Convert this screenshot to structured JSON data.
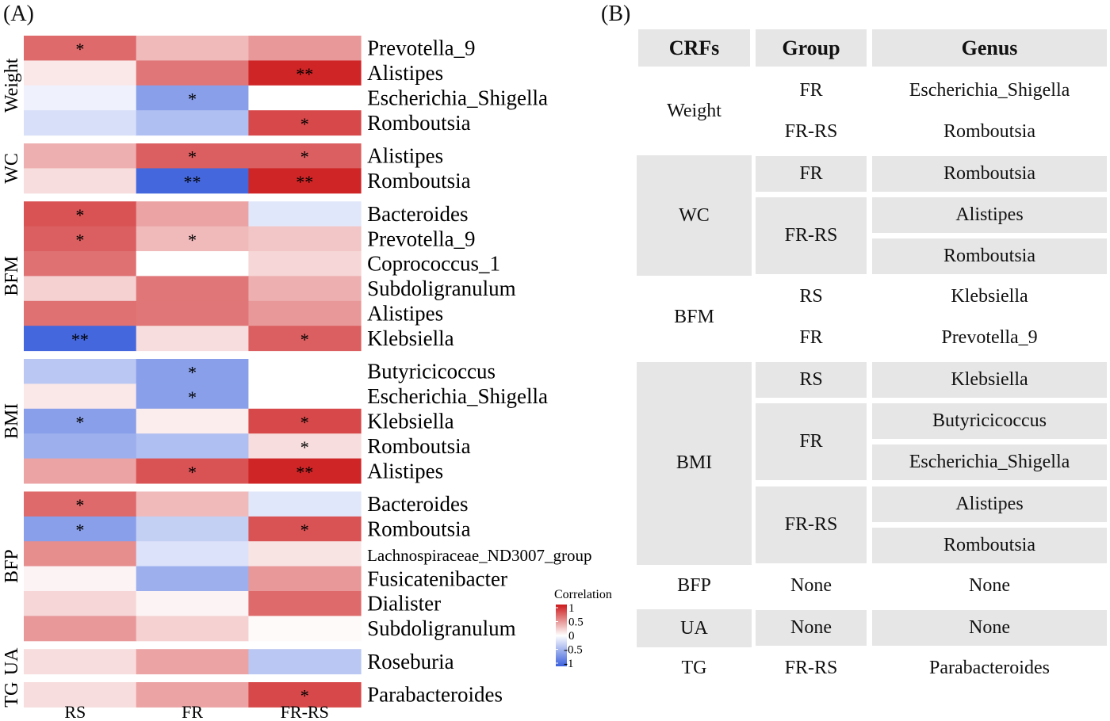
{
  "panel_a_label": "(A)",
  "panel_b_label": "(B)",
  "chart_data": {
    "type": "heatmap",
    "title": "",
    "columns": [
      "RS",
      "FR",
      "FR-RS"
    ],
    "legend": {
      "title": "Correlation",
      "ticks": [
        "1",
        "0.5",
        "0",
        "-0.5",
        "-1"
      ],
      "range": [
        -1,
        1
      ],
      "colors": {
        "low": "#3a5fdb",
        "mid": "#ffffff",
        "high": "#cc1a1c"
      }
    },
    "groups": [
      {
        "name": "Weight",
        "rows": [
          {
            "genus": "Prevotella_9",
            "values": [
              0.65,
              0.3,
              0.45
            ],
            "sig": [
              "*",
              "",
              ""
            ]
          },
          {
            "genus": "Alistipes",
            "values": [
              0.1,
              0.6,
              0.95
            ],
            "sig": [
              "",
              "",
              "**"
            ]
          },
          {
            "genus": "Escherichia_Shigella",
            "values": [
              -0.08,
              -0.6,
              0.0
            ],
            "sig": [
              "",
              "*",
              ""
            ]
          },
          {
            "genus": "Romboutsia",
            "values": [
              -0.2,
              -0.4,
              0.8
            ],
            "sig": [
              "",
              "",
              "*"
            ]
          }
        ]
      },
      {
        "name": "WC",
        "rows": [
          {
            "genus": "Alistipes",
            "values": [
              0.35,
              0.7,
              0.7
            ],
            "sig": [
              "",
              "*",
              "*"
            ]
          },
          {
            "genus": "Romboutsia",
            "values": [
              0.15,
              -0.95,
              0.95
            ],
            "sig": [
              "",
              "**",
              "**"
            ]
          }
        ]
      },
      {
        "name": "BFM",
        "rows": [
          {
            "genus": "Bacteroides",
            "values": [
              0.75,
              0.4,
              -0.15
            ],
            "sig": [
              "*",
              "",
              ""
            ]
          },
          {
            "genus": "Prevotella_9",
            "values": [
              0.7,
              0.3,
              0.25
            ],
            "sig": [
              "*",
              "*",
              ""
            ]
          },
          {
            "genus": "Coprococcus_1",
            "values": [
              0.62,
              0.0,
              0.18
            ],
            "sig": [
              "",
              "",
              ""
            ]
          },
          {
            "genus": "Subdoligranulum",
            "values": [
              0.2,
              0.6,
              0.35
            ],
            "sig": [
              "",
              "",
              ""
            ]
          },
          {
            "genus": "Alistipes",
            "values": [
              0.62,
              0.6,
              0.45
            ],
            "sig": [
              "",
              "",
              ""
            ]
          },
          {
            "genus": "Klebsiella",
            "values": [
              -0.95,
              0.15,
              0.7
            ],
            "sig": [
              "**",
              "",
              "*"
            ]
          }
        ]
      },
      {
        "name": "BMI",
        "rows": [
          {
            "genus": "Butyricicoccus",
            "values": [
              -0.35,
              -0.6,
              0.0
            ],
            "sig": [
              "",
              "*",
              ""
            ]
          },
          {
            "genus": "Escherichia_Shigella",
            "values": [
              0.1,
              -0.6,
              0.0
            ],
            "sig": [
              "",
              "*",
              ""
            ]
          },
          {
            "genus": "Klebsiella",
            "values": [
              -0.6,
              0.08,
              0.8
            ],
            "sig": [
              "*",
              "",
              "*"
            ]
          },
          {
            "genus": "Romboutsia",
            "values": [
              -0.5,
              -0.4,
              0.15
            ],
            "sig": [
              "",
              "",
              "*"
            ]
          },
          {
            "genus": "Alistipes",
            "values": [
              0.4,
              0.75,
              0.95
            ],
            "sig": [
              "",
              "*",
              "**"
            ]
          }
        ]
      },
      {
        "name": "BFP",
        "rows": [
          {
            "genus": "Bacteroides",
            "values": [
              0.65,
              0.3,
              -0.15
            ],
            "sig": [
              "*",
              "",
              ""
            ]
          },
          {
            "genus": "Romboutsia",
            "values": [
              -0.6,
              -0.3,
              0.75
            ],
            "sig": [
              "*",
              "",
              "*"
            ]
          },
          {
            "genus": "Lachnospiraceae_ND3007_group",
            "values": [
              0.5,
              -0.18,
              0.12
            ],
            "sig": [
              "",
              "",
              ""
            ]
          },
          {
            "genus": "Fusicatenibacter",
            "values": [
              0.05,
              -0.5,
              0.45
            ],
            "sig": [
              "",
              "",
              ""
            ]
          },
          {
            "genus": "Dialister",
            "values": [
              0.18,
              0.05,
              0.65
            ],
            "sig": [
              "",
              "",
              ""
            ]
          },
          {
            "genus": "Subdoligranulum",
            "values": [
              0.45,
              0.2,
              0.02
            ],
            "sig": [
              "",
              "",
              ""
            ]
          }
        ]
      },
      {
        "name": "UA",
        "rows": [
          {
            "genus": "Roseburia",
            "values": [
              0.15,
              0.4,
              -0.35
            ],
            "sig": [
              "",
              "",
              ""
            ]
          }
        ]
      },
      {
        "name": "TG",
        "rows": [
          {
            "genus": "Parabacteroides",
            "values": [
              0.15,
              0.4,
              0.8
            ],
            "sig": [
              "",
              "",
              "*"
            ]
          }
        ]
      }
    ]
  },
  "table": {
    "headers": [
      "CRFs",
      "Group",
      "Genus"
    ],
    "crfs": [
      {
        "name": "Weight",
        "shaded": false,
        "groups": [
          {
            "name": "FR",
            "genera": [
              "Escherichia_Shigella"
            ]
          },
          {
            "name": "FR-RS",
            "genera": [
              "Romboutsia"
            ]
          }
        ]
      },
      {
        "name": "WC",
        "shaded": true,
        "groups": [
          {
            "name": "FR",
            "genera": [
              "Romboutsia"
            ]
          },
          {
            "name": "FR-RS",
            "genera": [
              "Alistipes",
              "Romboutsia"
            ]
          }
        ]
      },
      {
        "name": "BFM",
        "shaded": false,
        "groups": [
          {
            "name": "RS",
            "genera": [
              "Klebsiella"
            ]
          },
          {
            "name": "FR",
            "genera": [
              "Prevotella_9"
            ]
          }
        ]
      },
      {
        "name": "BMI",
        "shaded": true,
        "groups": [
          {
            "name": "RS",
            "genera": [
              "Klebsiella"
            ]
          },
          {
            "name": "FR",
            "genera": [
              "Butyricicoccus",
              "Escherichia_Shigella"
            ]
          },
          {
            "name": "FR-RS",
            "genera": [
              "Alistipes",
              "Romboutsia"
            ]
          }
        ]
      },
      {
        "name": "BFP",
        "shaded": false,
        "groups": [
          {
            "name": "None",
            "genera": [
              "None"
            ]
          }
        ]
      },
      {
        "name": "UA",
        "shaded": true,
        "groups": [
          {
            "name": "None",
            "genera": [
              "None"
            ]
          }
        ]
      },
      {
        "name": "TG",
        "shaded": false,
        "groups": [
          {
            "name": "FR-RS",
            "genera": [
              "Parabacteroides"
            ]
          }
        ]
      }
    ]
  }
}
